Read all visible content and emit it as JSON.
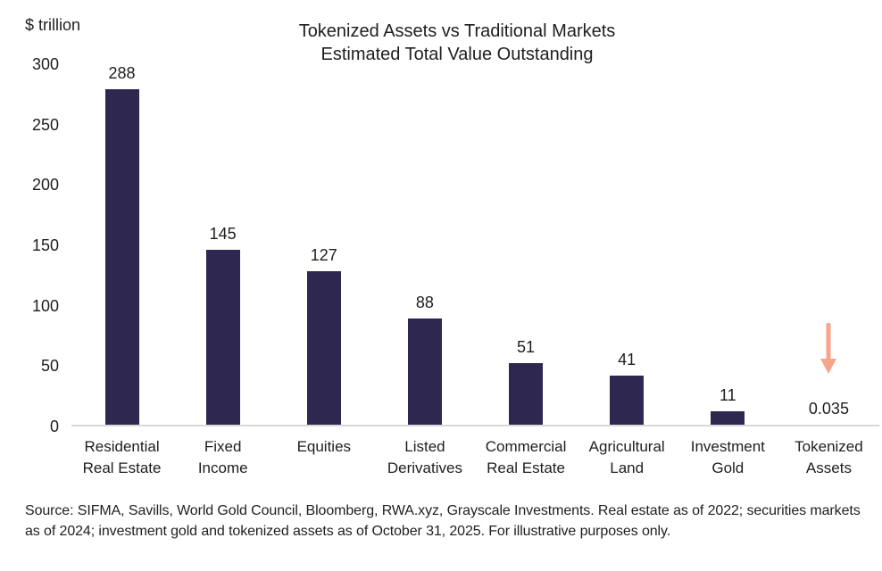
{
  "header": {
    "unit_label": "$ trillion",
    "title_line1": "Tokenized Assets vs Traditional Markets",
    "title_line2": "Estimated Total Value Outstanding"
  },
  "chart_data": {
    "type": "bar",
    "title": "Tokenized Assets vs Traditional Markets",
    "subtitle": "Estimated Total Value Outstanding",
    "ylabel": "$ trillion",
    "xlabel": "",
    "categories": [
      "Residential\nReal Estate",
      "Fixed\nIncome",
      "Equities",
      "Listed\nDerivatives",
      "Commercial\nReal Estate",
      "Agricultural\nLand",
      "Investment\nGold",
      "Tokenized\nAssets"
    ],
    "values": [
      288,
      145,
      127,
      88,
      51,
      41,
      11,
      0.035
    ],
    "value_labels": [
      "288",
      "145",
      "127",
      "88",
      "51",
      "41",
      "11",
      "0.035"
    ],
    "y_ticks": [
      300,
      250,
      200,
      150,
      100,
      50,
      0
    ],
    "ylim": [
      0,
      300
    ],
    "grid": false,
    "legend": false,
    "bar_color": "#2e2750",
    "axis_line_color": "#d9d9d9",
    "annotation": {
      "type": "down-arrow",
      "target_category": "Tokenized\nAssets",
      "target_index": 7,
      "color": "#f5a58c"
    }
  },
  "footer": {
    "source_text": "Source: SIFMA, Savills, World Gold Council, Bloomberg, RWA.xyz, Grayscale Investments. Real estate as of 2022; securities markets as of 2024; investment gold and tokenized assets as of October 31, 2025. For illustrative purposes only."
  }
}
